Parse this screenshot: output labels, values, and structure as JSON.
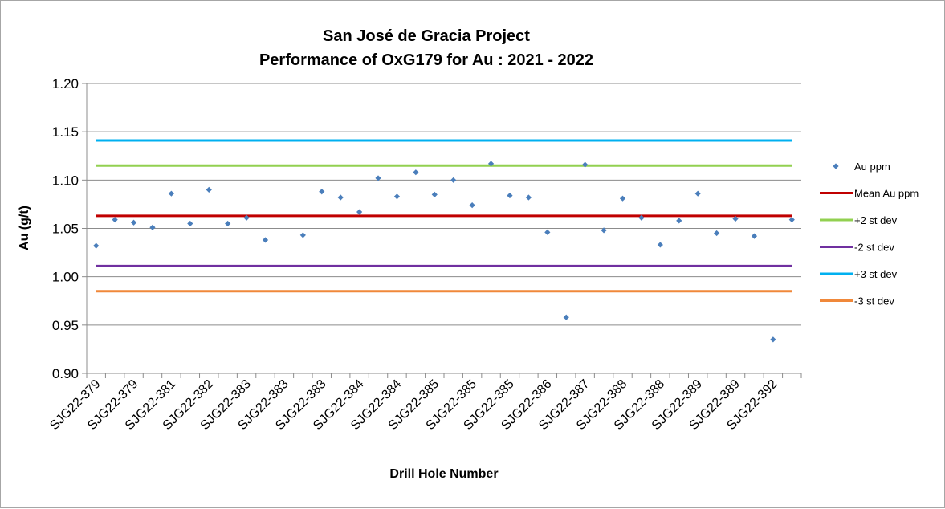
{
  "chart_data": {
    "type": "scatter",
    "title_line1": "San José de Gracia Project",
    "title_line2": "Performance of OxG179 for Au : 2021 - 2022",
    "xlabel": "Drill Hole Number",
    "ylabel": "Au (g/t)",
    "ylim": [
      0.9,
      1.2
    ],
    "y_ticks": [
      "0.90",
      "0.95",
      "1.00",
      "1.05",
      "1.10",
      "1.15",
      "1.20"
    ],
    "x_tick_labels": [
      "SJG22-379",
      "SJG22-379",
      "SJG22-381",
      "SJG22-382",
      "SJG22-383",
      "SJG22-383",
      "SJG22-383",
      "SJG22-384",
      "SJG22-384",
      "SJG22-385",
      "SJG22-385",
      "SJG22-385",
      "SJG22-386",
      "SJG22-387",
      "SJG22-388",
      "SJG22-388",
      "SJG22-389",
      "SJG22-389",
      "SJG22-392"
    ],
    "grid": "horizontal",
    "legend_position": "right",
    "series": [
      {
        "name": "Au ppm",
        "kind": "points",
        "color": "#4a7ebb",
        "values": [
          1.032,
          1.059,
          1.056,
          1.051,
          1.086,
          1.055,
          1.09,
          1.055,
          1.061,
          1.038,
          null,
          1.043,
          1.088,
          1.082,
          1.067,
          1.102,
          1.083,
          1.108,
          1.085,
          1.1,
          1.074,
          1.117,
          1.084,
          1.082,
          1.046,
          0.958,
          1.116,
          1.048,
          1.081,
          1.061,
          1.033,
          1.058,
          1.086,
          1.045,
          1.06,
          1.042,
          0.935,
          1.059
        ]
      },
      {
        "name": "Mean Au ppm",
        "kind": "line",
        "color": "#c00000",
        "value": 1.063
      },
      {
        "name": "+2 st dev",
        "kind": "line",
        "color": "#92d050",
        "value": 1.115
      },
      {
        "name": "-2 st dev",
        "kind": "line",
        "color": "#7030a0",
        "value": 1.011
      },
      {
        "name": "+3 st dev",
        "kind": "line",
        "color": "#00b0f0",
        "value": 1.141
      },
      {
        "name": "-3 st dev",
        "kind": "line",
        "color": "#f0883a",
        "value": 0.985
      }
    ]
  }
}
